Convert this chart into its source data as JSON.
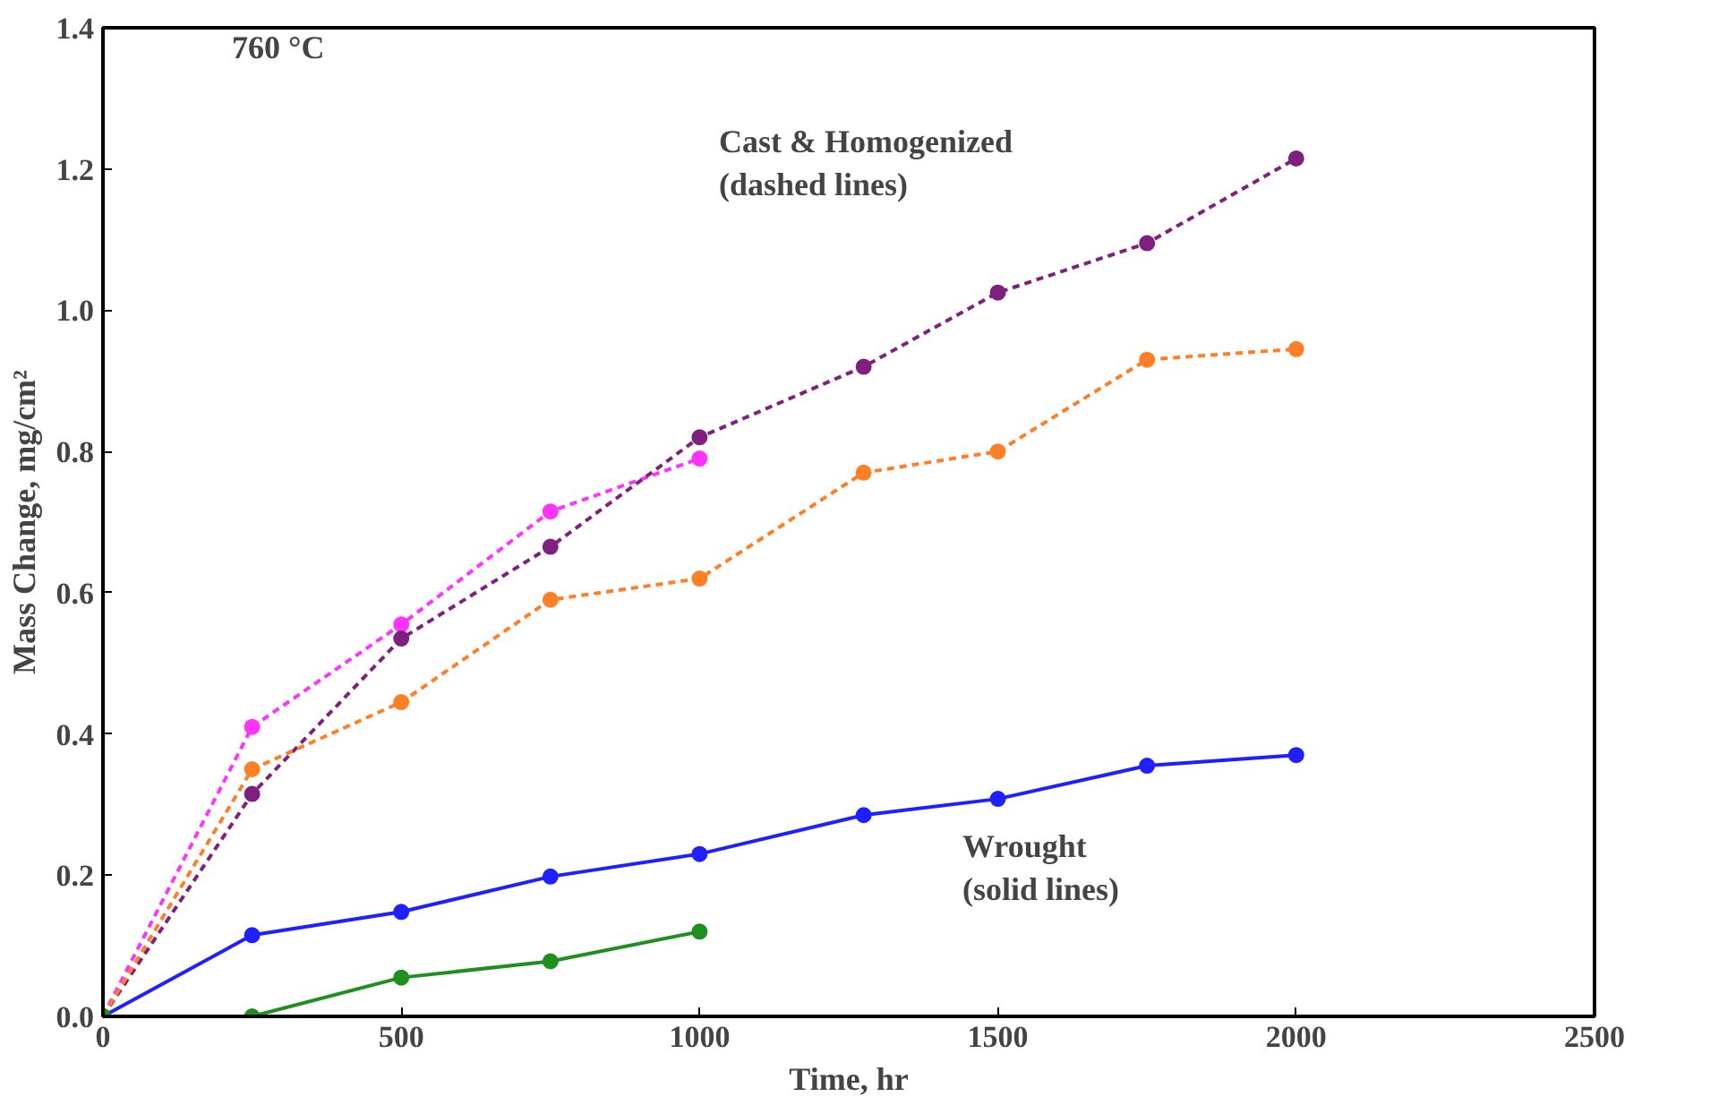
{
  "chart_data": {
    "type": "line",
    "xlabel": "Time, hr",
    "ylabel": "Mass Change, mg/cm²",
    "xlim": [
      0,
      2500
    ],
    "xticks": [
      0,
      500,
      1000,
      1500,
      2000,
      2500
    ],
    "ylim": [
      0,
      1.4
    ],
    "yticks": [
      {
        "value": 0,
        "label": "0.0"
      },
      {
        "value": 0.2,
        "label": "0.2"
      },
      {
        "value": 0.4,
        "label": "0.4"
      },
      {
        "value": 0.6,
        "label": "0.6"
      },
      {
        "value": 0.8,
        "label": "0.8"
      },
      {
        "value": 1.0,
        "label": "1.0"
      },
      {
        "value": 1.2,
        "label": "1.2"
      },
      {
        "value": 1.4,
        "label": "1.4"
      }
    ],
    "grid": false,
    "marker": "circle",
    "annotations": [
      "760 °C",
      "Cast & Homogenized\n(dashed lines)",
      "Wrought\n(solid lines)"
    ],
    "series": [
      {
        "color": "#ff33ff",
        "line_style": "dashed",
        "x": [
          0,
          250,
          500,
          750,
          1000
        ],
        "values": [
          0,
          0.41,
          0.555,
          0.715,
          0.79
        ]
      },
      {
        "color": "#7f1f7f",
        "line_style": "dashed",
        "x": [
          0,
          250,
          500,
          750,
          1000,
          1275,
          1500,
          1750,
          2000
        ],
        "values": [
          0,
          0.315,
          0.535,
          0.665,
          0.82,
          0.92,
          1.025,
          1.095,
          1.215
        ]
      },
      {
        "color": "#ff7f27",
        "line_style": "dashed",
        "x": [
          0,
          250,
          500,
          750,
          1000,
          1275,
          1500,
          1750,
          2000
        ],
        "values": [
          0,
          0.35,
          0.445,
          0.59,
          0.62,
          0.77,
          0.8,
          0.93,
          0.945
        ]
      },
      {
        "color": "#1f1fff",
        "line_style": "solid",
        "x": [
          0,
          250,
          500,
          750,
          1000,
          1275,
          1500,
          1750,
          2000
        ],
        "values": [
          0,
          0.115,
          0.148,
          0.198,
          0.23,
          0.285,
          0.308,
          0.355,
          0.37
        ]
      },
      {
        "color": "#1f8f1f",
        "line_style": "solid",
        "x": [
          0,
          250,
          500,
          750,
          1000
        ],
        "values": [
          0,
          0,
          0.055,
          0.078,
          0.12
        ]
      }
    ]
  }
}
